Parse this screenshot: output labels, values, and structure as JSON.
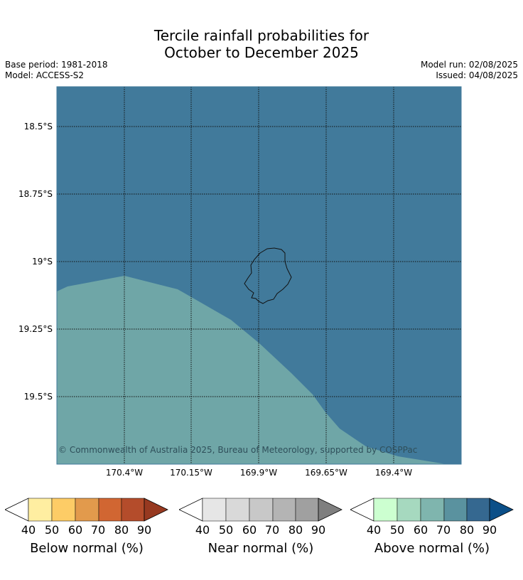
{
  "header": {
    "title_line1": "Tercile rainfall probabilities for",
    "title_line2": "October to December 2025",
    "base_period": "Base period: 1981-2018",
    "model": "Model: ACCESS-S2",
    "model_run": "Model run: 02/08/2025",
    "issued": "Issued: 04/08/2025"
  },
  "map": {
    "lat_labels": [
      "18.5°S",
      "18.75°S",
      "19°S",
      "19.25°S",
      "19.5°S"
    ],
    "lon_labels": [
      "170.4°W",
      "170.15°W",
      "169.9°W",
      "169.65°W",
      "169.4°W"
    ],
    "copyright": "© Commonwealth of Australia 2025, Bureau of Meteorology, supported by COSPPac",
    "colors": {
      "above_90": "#417a9b",
      "above_60": "#6fa6a7",
      "land_outline": "#111111",
      "grid": "#111111"
    }
  },
  "legends": [
    {
      "label": "Below normal (%)",
      "ticks": [
        "40",
        "50",
        "60",
        "70",
        "80",
        "90"
      ],
      "colors": [
        "#ffeea1",
        "#fdcc66",
        "#e29a4c",
        "#d16632",
        "#b44c2b",
        "#973920"
      ]
    },
    {
      "label": "Near normal (%)",
      "ticks": [
        "40",
        "50",
        "60",
        "70",
        "80",
        "90"
      ],
      "colors": [
        "#e6e6e6",
        "#d9d9d9",
        "#c8c8c8",
        "#b4b4b4",
        "#a0a0a0",
        "#7f7f7f"
      ]
    },
    {
      "label": "Above normal (%)",
      "ticks": [
        "40",
        "50",
        "60",
        "70",
        "80",
        "90"
      ],
      "colors": [
        "#ccffd0",
        "#a6d9bf",
        "#7fb5ae",
        "#5a929f",
        "#356890",
        "#0b4f88"
      ]
    }
  ]
}
